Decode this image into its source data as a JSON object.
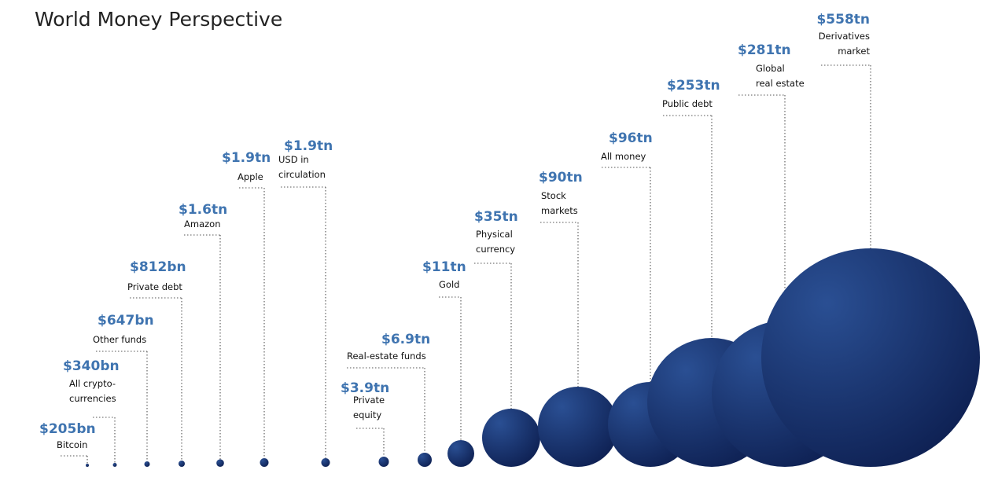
{
  "title": "World Money Perspective",
  "colors": {
    "value_text": "#3f74b0",
    "bubble_light": "#2a4f93",
    "bubble_dark": "#0c1d4e",
    "leader": "#555555"
  },
  "chart_data": {
    "type": "bubble",
    "title": "World Money Perspective",
    "unit": "USD",
    "items": [
      {
        "value_label": "$205bn",
        "label": [
          "Bitcoin"
        ],
        "value_tn": 0.205
      },
      {
        "value_label": "$340bn",
        "label": [
          "All crypto-",
          "currencies"
        ],
        "value_tn": 0.34
      },
      {
        "value_label": "$647bn",
        "label": [
          "Other funds"
        ],
        "value_tn": 0.647
      },
      {
        "value_label": "$812bn",
        "label": [
          "Private debt"
        ],
        "value_tn": 0.812
      },
      {
        "value_label": "$1.6tn",
        "label": [
          "Amazon"
        ],
        "value_tn": 1.6
      },
      {
        "value_label": "$1.9tn",
        "label": [
          "Apple"
        ],
        "value_tn": 1.9
      },
      {
        "value_label": "$1.9tn",
        "label": [
          "USD in",
          "circulation"
        ],
        "value_tn": 1.9
      },
      {
        "value_label": "$3.9tn",
        "label": [
          "Private",
          "equity"
        ],
        "value_tn": 3.9
      },
      {
        "value_label": "$6.9tn",
        "label": [
          "Real-estate funds"
        ],
        "value_tn": 6.9
      },
      {
        "value_label": "$11tn",
        "label": [
          "Gold"
        ],
        "value_tn": 11
      },
      {
        "value_label": "$35tn",
        "label": [
          "Physical",
          "currency"
        ],
        "value_tn": 35
      },
      {
        "value_label": "$90tn",
        "label": [
          "Stock",
          "markets"
        ],
        "value_tn": 90
      },
      {
        "value_label": "$96tn",
        "label": [
          "All money"
        ],
        "value_tn": 96
      },
      {
        "value_label": "$253tn",
        "label": [
          "Public debt"
        ],
        "value_tn": 253
      },
      {
        "value_label": "$281tn",
        "label": [
          "Global",
          "real estate"
        ],
        "value_tn": 281
      },
      {
        "value_label": "$558tn",
        "label": [
          "Derivatives",
          "market"
        ],
        "value_tn": 558
      }
    ]
  }
}
